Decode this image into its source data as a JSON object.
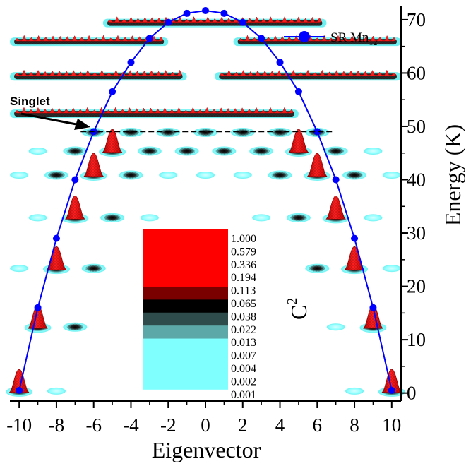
{
  "chart_data": {
    "type": "scatter",
    "xlabel": "Eigenvector",
    "ylabel": "Energy (K)",
    "xlim": [
      -10.5,
      10.5
    ],
    "ylim": [
      -1.5,
      72.5
    ],
    "xticks": [
      -10,
      -8,
      -6,
      -4,
      -2,
      0,
      2,
      4,
      6,
      8,
      10
    ],
    "yticks": [
      0,
      10,
      20,
      30,
      40,
      50,
      60,
      70
    ],
    "grid": false,
    "legend_position": "top-right",
    "series": [
      {
        "name": "SR Mn12",
        "color": "#0000ff",
        "x": [
          -10,
          -9,
          -8,
          -7,
          -6,
          -5,
          -4,
          -3,
          -2,
          -1,
          0,
          1,
          2,
          3,
          4,
          5,
          6,
          7,
          8,
          9,
          10
        ],
        "y": [
          0.5,
          16,
          29,
          40,
          49,
          56.5,
          62,
          66.5,
          69.5,
          71.2,
          71.7,
          71.2,
          69.5,
          66.5,
          62,
          56.5,
          49,
          40,
          29,
          16,
          0.5
        ]
      }
    ],
    "legend": {
      "label_main": "SR Mn",
      "label_sub": "12"
    },
    "annotation": {
      "text": "Singlet",
      "energy": 49
    },
    "colorbar": {
      "title_main": "C",
      "title_sup": "2",
      "levels": [
        "1.000",
        "0.579",
        "0.336",
        "0.194",
        "0.113",
        "0.065",
        "0.038",
        "0.022",
        "0.013",
        "0.007",
        "0.004",
        "0.002",
        "0.001"
      ],
      "colors": [
        "#ff0000",
        "#7a0000",
        "#000000",
        "#2e4c4c",
        "#5ca7a7",
        "#80ffff"
      ]
    },
    "states": [
      {
        "energy": 0.5,
        "blobs": [
          [
            -10,
            "red"
          ],
          [
            -8,
            "cyan"
          ],
          [
            8,
            "cyan"
          ],
          [
            10,
            "red"
          ]
        ]
      },
      {
        "energy": 12.5,
        "blobs": [
          [
            -9,
            "red"
          ],
          [
            -7,
            "dot"
          ],
          [
            7,
            "cyan"
          ],
          [
            9,
            "red"
          ]
        ]
      },
      {
        "energy": 23.5,
        "blobs": [
          [
            -10,
            "cyan"
          ],
          [
            -8,
            "red"
          ],
          [
            -6,
            "dot"
          ],
          [
            6,
            "dot"
          ],
          [
            8,
            "red"
          ],
          [
            10,
            "cyan"
          ]
        ]
      },
      {
        "energy": 33,
        "blobs": [
          [
            -9,
            "cyan"
          ],
          [
            -7,
            "red"
          ],
          [
            -5,
            "dot"
          ],
          [
            -3,
            "cyan"
          ],
          [
            3,
            "cyan"
          ],
          [
            5,
            "dot"
          ],
          [
            7,
            "red"
          ],
          [
            9,
            "cyan"
          ]
        ]
      },
      {
        "energy": 41,
        "blobs": [
          [
            -10,
            "cyan"
          ],
          [
            -8,
            "dot"
          ],
          [
            -6,
            "red"
          ],
          [
            -4,
            "dot"
          ],
          [
            -2,
            "cyan"
          ],
          [
            0,
            "cyan"
          ],
          [
            2,
            "cyan"
          ],
          [
            4,
            "dot"
          ],
          [
            6,
            "red"
          ],
          [
            8,
            "dot"
          ],
          [
            10,
            "cyan"
          ]
        ]
      },
      {
        "energy": 45.5,
        "blobs": [
          [
            -9,
            "cyan"
          ],
          [
            -7,
            "dot"
          ],
          [
            -5,
            "red"
          ],
          [
            -3,
            "dot"
          ],
          [
            -1,
            "dot"
          ],
          [
            1,
            "dot"
          ],
          [
            3,
            "dot"
          ],
          [
            5,
            "red"
          ],
          [
            7,
            "dot"
          ],
          [
            9,
            "cyan"
          ]
        ]
      },
      {
        "energy": 49,
        "blobs": [
          [
            -6,
            "dot"
          ],
          [
            -4,
            "dot"
          ],
          [
            -2,
            "dot"
          ],
          [
            0,
            "dot"
          ],
          [
            2,
            "dot"
          ],
          [
            4,
            "dot"
          ],
          [
            6,
            "dot"
          ]
        ]
      },
      {
        "energy": 52.5,
        "band": [
          [
            -10,
            4.5
          ]
        ]
      },
      {
        "energy": 59.5,
        "band": [
          [
            -10,
            -1.5
          ],
          [
            1,
            10
          ]
        ]
      },
      {
        "energy": 66,
        "band": [
          [
            -10,
            -2.5
          ],
          [
            2,
            10
          ]
        ]
      },
      {
        "energy": 69.5,
        "band": [
          [
            -5,
            6
          ]
        ]
      }
    ]
  }
}
